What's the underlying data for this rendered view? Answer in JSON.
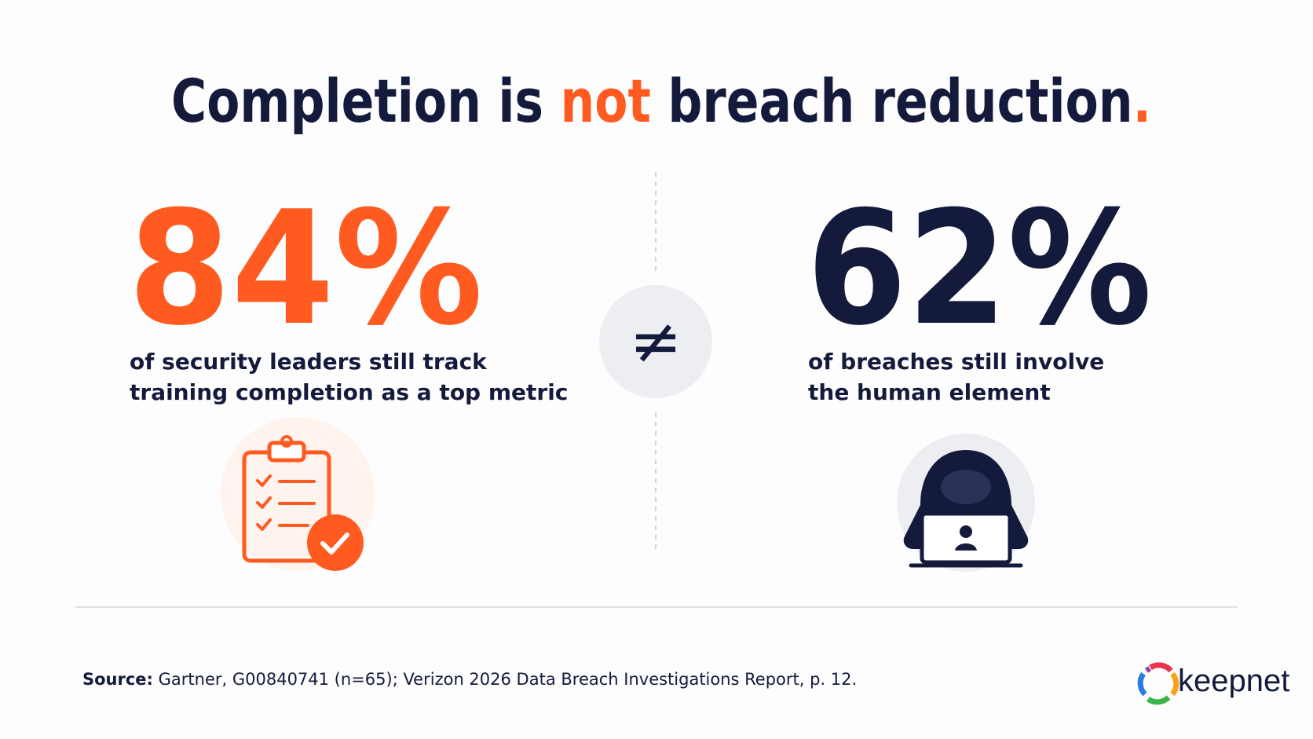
{
  "title": {
    "parts": [
      "Completion is ",
      "not",
      " breach reduction",
      "."
    ]
  },
  "stats": [
    {
      "value": "84%",
      "lines": [
        "of security leaders still track",
        "training completion as a top metric"
      ]
    },
    {
      "value": "62%",
      "lines": [
        "of breaches still involve",
        "the human element"
      ]
    }
  ],
  "symbol": "≠",
  "source": {
    "label": "Source:",
    "text": " Gartner, G00840741 (n=65); Verizon 2026 Data Breach Investigations Report, p. 12."
  },
  "logo": "keepnet"
}
